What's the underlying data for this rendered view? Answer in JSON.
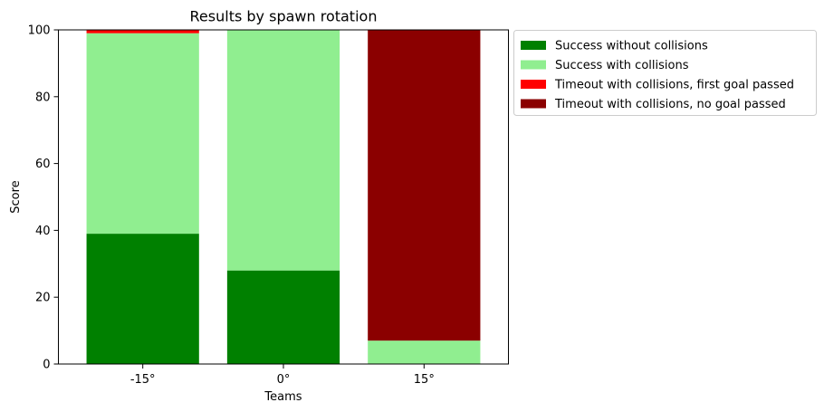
{
  "chart_data": {
    "type": "bar",
    "stacked": true,
    "title": "Results by spawn rotation",
    "xlabel": "Teams",
    "ylabel": "Score",
    "categories": [
      "-15°",
      "0°",
      "15°"
    ],
    "ylim": [
      0,
      100
    ],
    "yticks": [
      0,
      20,
      40,
      60,
      80,
      100
    ],
    "grid": false,
    "legend_position": "outside-top-right",
    "series": [
      {
        "name": "Success without collisions",
        "color": "#008000",
        "values": [
          39,
          28,
          0
        ]
      },
      {
        "name": "Success with collisions",
        "color": "#90ee90",
        "values": [
          60,
          72,
          7
        ]
      },
      {
        "name": "Timeout with collisions, first goal passed",
        "color": "#ff0000",
        "values": [
          1,
          0,
          0
        ]
      },
      {
        "name": "Timeout with collisions, no goal passed",
        "color": "#8b0000",
        "values": [
          0,
          0,
          93
        ]
      }
    ]
  }
}
